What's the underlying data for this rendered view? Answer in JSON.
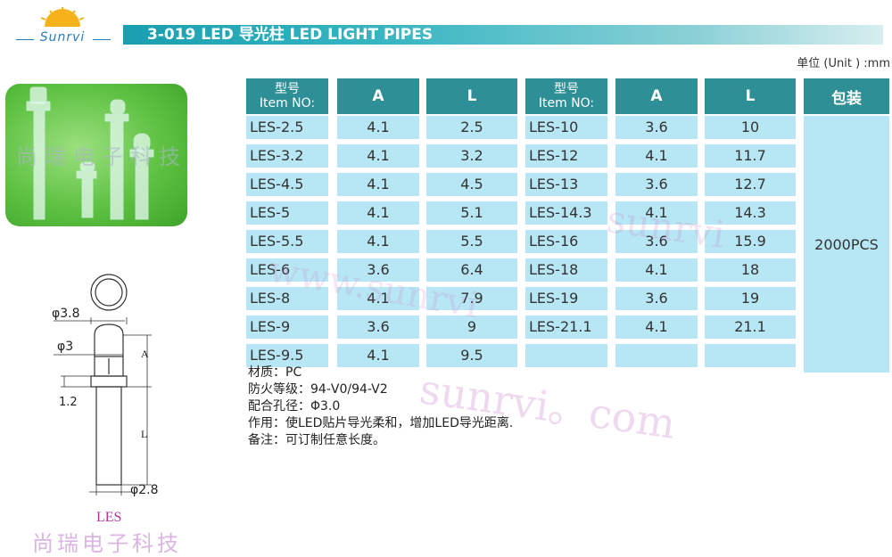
{
  "header": {
    "brand": "Sunrvi",
    "title": "3-019 LED 导光柱 LED LIGHT PIPES",
    "unit": "单位 (Unit ) :mm"
  },
  "photo": {
    "watermark": "尚瑞电子科技"
  },
  "drawing": {
    "dim_outer": "φ3.8",
    "dim_inner": "φ3",
    "dim_ring": "1.2",
    "dim_a": "A",
    "dim_l": "L",
    "dim_base": "φ2.8",
    "label": "LES"
  },
  "watermarks": {
    "bottom": "尚瑞电子科技",
    "site": "sunrvi。com",
    "site_mid": "sunrvi",
    "site_low": "www.sunrvi"
  },
  "table": {
    "headers": {
      "item_cn": "型号",
      "item_en": "Item NO:",
      "a": "A",
      "l": "L",
      "pack": "包装"
    },
    "left_rows": [
      {
        "item": "LES-2.5",
        "a": "4.1",
        "l": "2.5"
      },
      {
        "item": "LES-3.2",
        "a": "4.1",
        "l": "3.2"
      },
      {
        "item": "LES-4.5",
        "a": "4.1",
        "l": "4.5"
      },
      {
        "item": "LES-5",
        "a": "4.1",
        "l": "5.1"
      },
      {
        "item": "LES-5.5",
        "a": "4.1",
        "l": "5.5"
      },
      {
        "item": "LES-6",
        "a": "3.6",
        "l": "6.4"
      },
      {
        "item": "LES-8",
        "a": "4.1",
        "l": "7.9"
      },
      {
        "item": "LES-9",
        "a": "3.6",
        "l": "9"
      },
      {
        "item": "LES-9.5",
        "a": "4.1",
        "l": "9.5"
      }
    ],
    "right_rows": [
      {
        "item": "LES-10",
        "a": "3.6",
        "l": "10"
      },
      {
        "item": "LES-12",
        "a": "4.1",
        "l": "11.7"
      },
      {
        "item": "LES-13",
        "a": "3.6",
        "l": "12.7"
      },
      {
        "item": "LES-14.3",
        "a": "4.1",
        "l": "14.3"
      },
      {
        "item": "LES-16",
        "a": "3.6",
        "l": "15.9"
      },
      {
        "item": "LES-18",
        "a": "4.1",
        "l": "18"
      },
      {
        "item": "LES-19",
        "a": "3.6",
        "l": "19"
      },
      {
        "item": "LES-21.1",
        "a": "4.1",
        "l": "21.1"
      },
      {
        "item": "",
        "a": "",
        "l": ""
      }
    ],
    "pack_value": "2000PCS"
  },
  "notes": [
    "材质：PC",
    "防火等级：94-V0/94-V2",
    "配合孔径：Φ3.0",
    "作用：使LED贴片导光柔和，增加LED导光距离.",
    "备注：可订制任意长度。"
  ]
}
